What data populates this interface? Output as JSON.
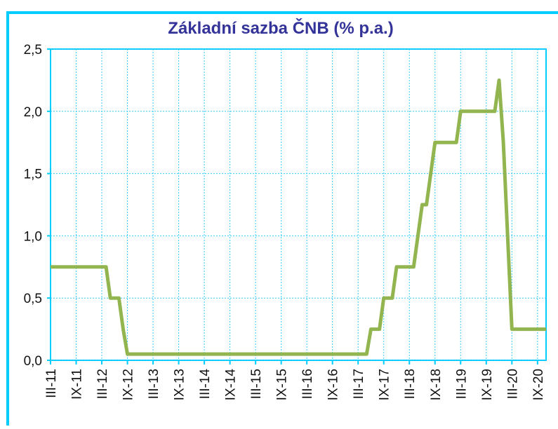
{
  "chart_data": {
    "type": "line",
    "title": "Základní sazba ČNB (% p.a.)",
    "categories": [
      "III-11",
      null,
      null,
      null,
      null,
      null,
      "IX-11",
      null,
      null,
      null,
      null,
      null,
      "III-12",
      null,
      null,
      null,
      null,
      null,
      "IX-12",
      null,
      null,
      null,
      null,
      null,
      "III-13",
      null,
      null,
      null,
      null,
      null,
      "IX-13",
      null,
      null,
      null,
      null,
      null,
      "III-14",
      null,
      null,
      null,
      null,
      null,
      "IX-14",
      null,
      null,
      null,
      null,
      null,
      "III-15",
      null,
      null,
      null,
      null,
      null,
      "IX-15",
      null,
      null,
      null,
      null,
      null,
      "III-16",
      null,
      null,
      null,
      null,
      null,
      "IX-16",
      null,
      null,
      null,
      null,
      null,
      "III-17",
      null,
      null,
      null,
      null,
      null,
      "IX-17",
      null,
      null,
      null,
      null,
      null,
      "III-18",
      null,
      null,
      null,
      null,
      null,
      "IX-18",
      null,
      null,
      null,
      null,
      null,
      "III-19",
      null,
      null,
      null,
      null,
      null,
      "IX-19",
      null,
      null,
      null,
      null,
      null,
      "III-20",
      null,
      null,
      null,
      null,
      null,
      "IX-20",
      null,
      null
    ],
    "series": [
      {
        "name": "Základní sazba",
        "color": "#92b550",
        "values": [
          0.75,
          0.75,
          0.75,
          0.75,
          0.75,
          0.75,
          0.75,
          0.75,
          0.75,
          0.75,
          0.75,
          0.75,
          0.75,
          0.75,
          0.5,
          0.5,
          0.5,
          0.25,
          0.05,
          0.05,
          0.05,
          0.05,
          0.05,
          0.05,
          0.05,
          0.05,
          0.05,
          0.05,
          0.05,
          0.05,
          0.05,
          0.05,
          0.05,
          0.05,
          0.05,
          0.05,
          0.05,
          0.05,
          0.05,
          0.05,
          0.05,
          0.05,
          0.05,
          0.05,
          0.05,
          0.05,
          0.05,
          0.05,
          0.05,
          0.05,
          0.05,
          0.05,
          0.05,
          0.05,
          0.05,
          0.05,
          0.05,
          0.05,
          0.05,
          0.05,
          0.05,
          0.05,
          0.05,
          0.05,
          0.05,
          0.05,
          0.05,
          0.05,
          0.05,
          0.05,
          0.05,
          0.05,
          0.05,
          0.05,
          0.05,
          0.25,
          0.25,
          0.25,
          0.5,
          0.5,
          0.5,
          0.75,
          0.75,
          0.75,
          0.75,
          0.75,
          1.0,
          1.25,
          1.25,
          1.5,
          1.75,
          1.75,
          1.75,
          1.75,
          1.75,
          1.75,
          2.0,
          2.0,
          2.0,
          2.0,
          2.0,
          2.0,
          2.0,
          2.0,
          2.0,
          2.25,
          1.75,
          1.0,
          0.25,
          0.25,
          0.25,
          0.25,
          0.25,
          0.25,
          0.25,
          0.25,
          0.25
        ]
      }
    ],
    "ylim": [
      0,
      2.5
    ],
    "yticks": [
      {
        "value": 0,
        "label": "0,0"
      },
      {
        "value": 0.5,
        "label": "0,5"
      },
      {
        "value": 1,
        "label": "1,0"
      },
      {
        "value": 1.5,
        "label": "1,5"
      },
      {
        "value": 2,
        "label": "2,0"
      },
      {
        "value": 2.5,
        "label": "2,5"
      }
    ],
    "grid": true
  }
}
